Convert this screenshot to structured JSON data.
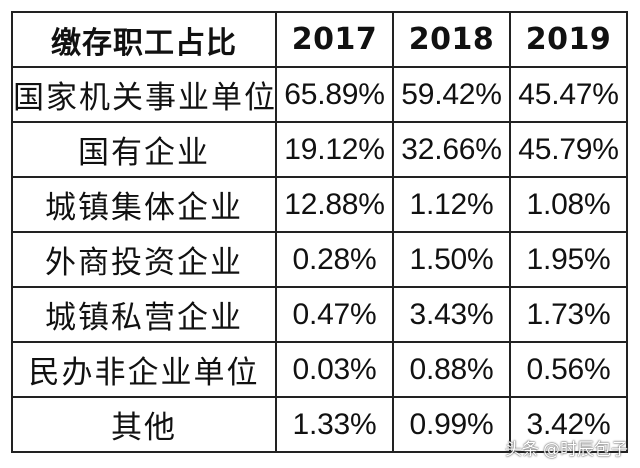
{
  "chart_data": {
    "type": "table",
    "columns": [
      "缴存职工占比",
      "2017",
      "2018",
      "2019"
    ],
    "rows": [
      {
        "category": "国家机关事业单位",
        "values": [
          "65.89%",
          "59.42%",
          "45.47%"
        ]
      },
      {
        "category": "国有企业",
        "values": [
          "19.12%",
          "32.66%",
          "45.79%"
        ]
      },
      {
        "category": "城镇集体企业",
        "values": [
          "12.88%",
          "1.12%",
          "1.08%"
        ]
      },
      {
        "category": "外商投资企业",
        "values": [
          "0.28%",
          "1.50%",
          "1.95%"
        ]
      },
      {
        "category": "城镇私营企业",
        "values": [
          "0.47%",
          "3.43%",
          "1.73%"
        ]
      },
      {
        "category": "民办非企业单位",
        "values": [
          "0.03%",
          "0.88%",
          "0.56%"
        ]
      },
      {
        "category": "其他",
        "values": [
          "1.33%",
          "0.99%",
          "3.42%"
        ]
      }
    ]
  },
  "watermark": {
    "source": "头条",
    "handle": "@时辰包子"
  },
  "colors": {
    "border": "#222222",
    "text": "#111111",
    "background": "#ffffff"
  }
}
